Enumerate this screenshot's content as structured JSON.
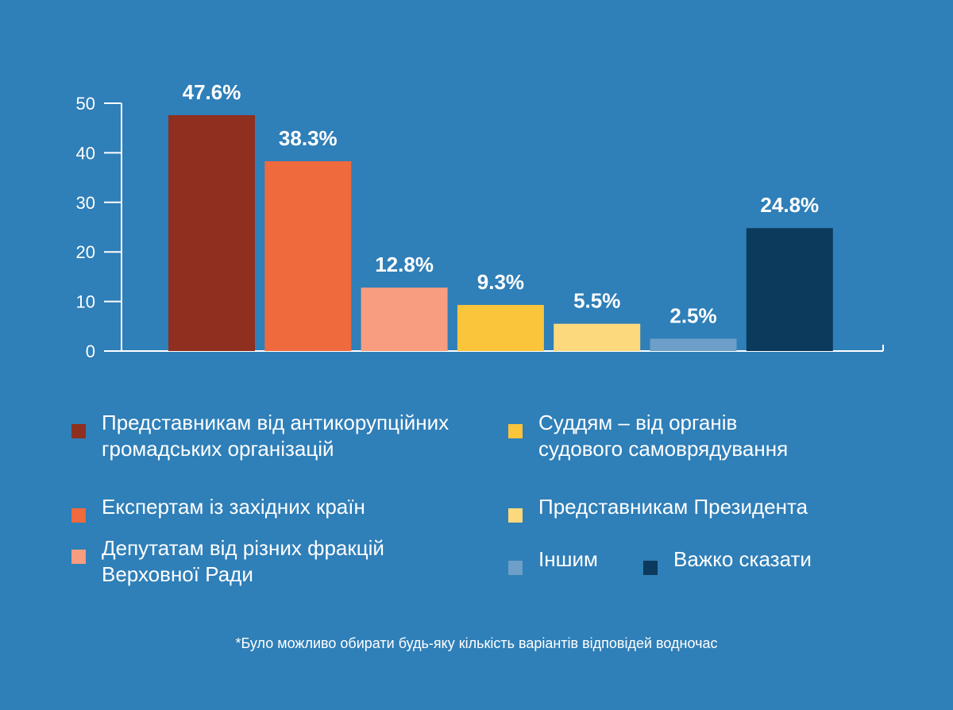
{
  "chart_data": {
    "type": "bar",
    "title": "",
    "xlabel": "",
    "ylabel": "",
    "ylim": [
      0,
      50
    ],
    "yticks": [
      "0",
      "10",
      "20",
      "30",
      "40",
      "50"
    ],
    "categories": [
      "Представникам від антикорупційних громадських організацій",
      "Експертам із західних країн",
      "Депутатам від різних фракцій Верховної Ради",
      "Суддям – від органів судового самоврядування",
      "Представникам  Президента",
      "Іншим",
      "Важко сказати"
    ],
    "values": [
      47.6,
      38.3,
      12.8,
      9.3,
      5.5,
      2.5,
      24.8
    ],
    "data_labels": [
      "47.6%",
      "38.3%",
      "12.8%",
      "9.3%",
      "5.5%",
      "2.5%",
      "24.8%"
    ],
    "colors": [
      "#8e2f1f",
      "#ef6a3c",
      "#f89d80",
      "#fac43b",
      "#fdd97e",
      "#6d9fc8",
      "#0b3a5c"
    ],
    "grid": false,
    "legend_position": "bottom"
  },
  "legend": {
    "items": [
      {
        "line1": "Представникам від антикорупційних",
        "line2": "громадських організацій"
      },
      {
        "line1": "Експертам із західних країн",
        "line2": ""
      },
      {
        "line1": "Депутатам від різних фракцій",
        "line2": "Верховної Ради"
      },
      {
        "line1": "Суддям – від органів",
        "line2": "судового самоврядування"
      },
      {
        "line1": "Представникам  Президента",
        "line2": ""
      },
      {
        "line1": "Іншим",
        "line2": ""
      },
      {
        "line1": "Важко сказати",
        "line2": ""
      }
    ]
  },
  "footnote": "*Було можливо обирати будь-яку кількість варіантів відповідей водночас",
  "colors": {
    "background": "#2f7fb8",
    "axis": "#ffffff",
    "text": "#ffffff"
  }
}
